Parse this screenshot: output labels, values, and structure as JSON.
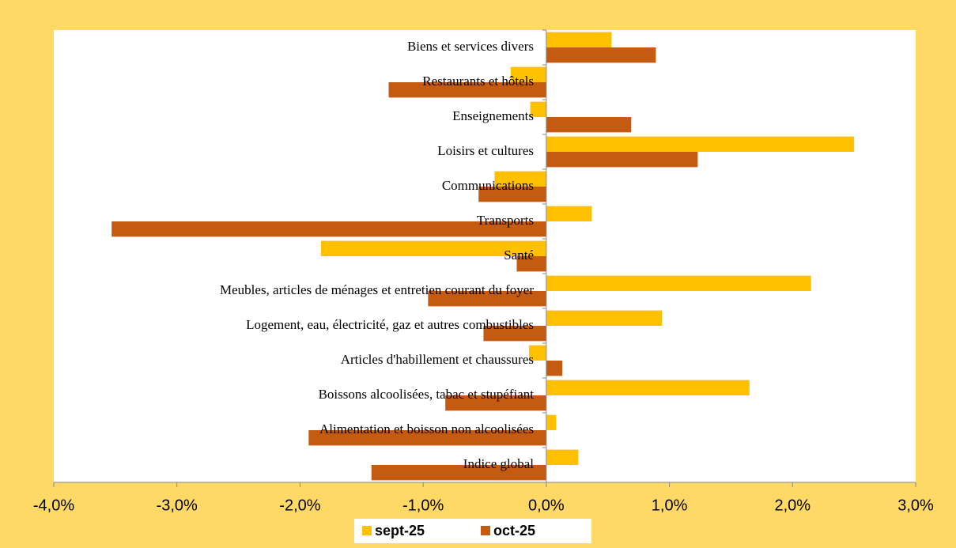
{
  "chart_data": {
    "type": "hbar",
    "categories": [
      "Biens et services divers",
      "Restaurants et hôtels",
      "Enseignements",
      "Loisirs et cultures",
      "Communications",
      "Transports",
      "Santé",
      "Meubles, articles de ménages et entretien courant du foyer",
      "Logement, eau, électricité, gaz et autres combustibles",
      "Articles d'habillement et chaussures",
      "Boissons alcoolisées, tabac et stupéfiant",
      "Alimentation et boisson non alcoolisées",
      "Indice global"
    ],
    "series": [
      {
        "name": "sept-25",
        "color": "#ffc000",
        "values": [
          0.53,
          -0.29,
          -0.13,
          2.5,
          -0.42,
          0.37,
          -1.83,
          2.15,
          0.94,
          -0.14,
          1.65,
          0.08,
          0.26
        ]
      },
      {
        "name": "oct-25",
        "color": "#c55a11",
        "values": [
          0.89,
          -1.28,
          0.69,
          1.23,
          -0.55,
          -3.53,
          -0.24,
          -0.96,
          -0.51,
          0.13,
          -0.82,
          -1.93,
          -1.42
        ]
      }
    ],
    "xlim": [
      -4,
      3
    ],
    "xticks": [
      {
        "value": -4,
        "label": "-4,0%"
      },
      {
        "value": -3,
        "label": "-3,0%"
      },
      {
        "value": -2,
        "label": "-2,0%"
      },
      {
        "value": -1,
        "label": "-1,0%"
      },
      {
        "value": 0,
        "label": "0,0%"
      },
      {
        "value": 1,
        "label": "1,0%"
      },
      {
        "value": 2,
        "label": "2,0%"
      },
      {
        "value": 3,
        "label": "3,0%"
      }
    ],
    "legend": "bottom"
  }
}
